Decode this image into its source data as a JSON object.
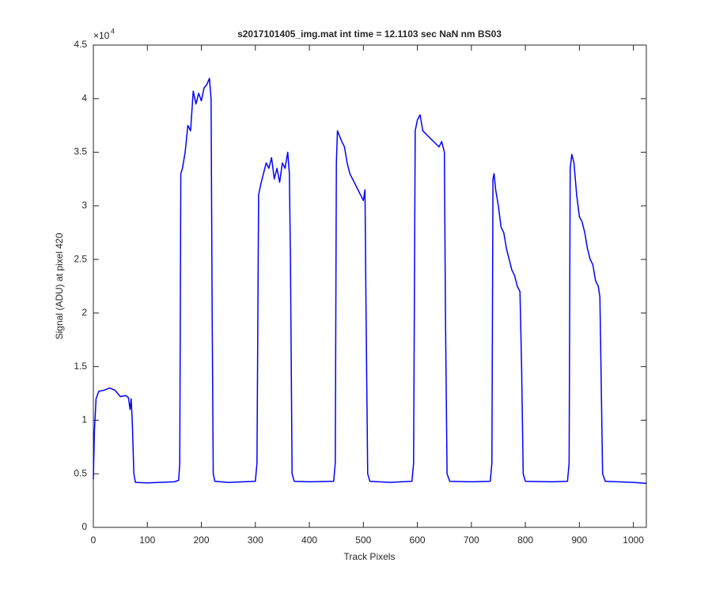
{
  "chart_data": {
    "type": "line",
    "title": "s2017101405_img.mat int time = 12.1103 sec  NaN nm BS03",
    "x_label": "Track Pixels",
    "y_label": "Signal (ADU) at pixel 420",
    "y_multiplier": {
      "base": "×10",
      "exponent": "4"
    },
    "xlim": [
      0,
      1024
    ],
    "ylim": [
      0,
      45000
    ],
    "xticks": [
      0,
      100,
      200,
      300,
      400,
      500,
      600,
      700,
      800,
      900,
      1000
    ],
    "yticks": [
      0,
      {
        "value": 5000,
        "label": "0.5"
      },
      {
        "value": 10000,
        "label": "1"
      },
      {
        "value": 15000,
        "label": "1.5"
      },
      {
        "value": 20000,
        "label": "2"
      },
      {
        "value": 25000,
        "label": "2.5"
      },
      {
        "value": 30000,
        "label": "3"
      },
      {
        "value": 35000,
        "label": "3.5"
      },
      {
        "value": 40000,
        "label": "4"
      },
      {
        "value": 45000,
        "label": "4.5"
      }
    ],
    "grid": false,
    "x": [
      0,
      2,
      5,
      10,
      20,
      30,
      40,
      50,
      60,
      65,
      68,
      70,
      72,
      75,
      78,
      100,
      150,
      158,
      160,
      162,
      165,
      170,
      175,
      180,
      185,
      190,
      195,
      200,
      205,
      210,
      215,
      218,
      220,
      222,
      225,
      250,
      300,
      303,
      306,
      310,
      315,
      320,
      325,
      330,
      335,
      340,
      345,
      350,
      355,
      360,
      363,
      365,
      368,
      372,
      400,
      445,
      448,
      450,
      452,
      460,
      465,
      470,
      475,
      480,
      485,
      490,
      495,
      500,
      503,
      505,
      508,
      512,
      550,
      590,
      593,
      596,
      600,
      605,
      610,
      620,
      630,
      640,
      645,
      650,
      652,
      655,
      660,
      700,
      735,
      738,
      740,
      742,
      745,
      750,
      755,
      760,
      765,
      770,
      775,
      780,
      785,
      790,
      793,
      796,
      800,
      850,
      878,
      881,
      883,
      886,
      890,
      895,
      900,
      905,
      910,
      915,
      920,
      925,
      930,
      935,
      938,
      940,
      943,
      948,
      1000,
      1024
    ],
    "series": [
      {
        "color": "#0000ff",
        "values": [
          4500,
          9000,
          12000,
          12700,
          12800,
          13000,
          12800,
          12200,
          12300,
          12100,
          11000,
          12000,
          10000,
          5000,
          4200,
          4150,
          4250,
          4400,
          6000,
          33000,
          33500,
          35000,
          37500,
          37000,
          40700,
          39500,
          40500,
          39800,
          41000,
          41300,
          41900,
          40000,
          20000,
          5000,
          4300,
          4200,
          4300,
          6000,
          31000,
          32000,
          33000,
          34000,
          33500,
          34500,
          32500,
          33500,
          32200,
          34000,
          33500,
          35000,
          33000,
          25000,
          5000,
          4300,
          4250,
          4300,
          6000,
          34000,
          37000,
          36000,
          35500,
          34000,
          33000,
          32500,
          32000,
          31500,
          31000,
          30500,
          31500,
          20000,
          5000,
          4300,
          4200,
          4300,
          6000,
          37000,
          38000,
          38500,
          37000,
          36500,
          36000,
          35500,
          36000,
          35000,
          20000,
          5000,
          4300,
          4250,
          4300,
          6000,
          32500,
          33000,
          31500,
          30000,
          28000,
          27500,
          26000,
          25000,
          24000,
          23500,
          22500,
          22000,
          15000,
          5000,
          4300,
          4250,
          4300,
          6000,
          33500,
          34800,
          34000,
          31000,
          29000,
          28500,
          27500,
          26000,
          25000,
          24500,
          23000,
          22500,
          21500,
          15000,
          5000,
          4300,
          4200,
          4100
        ]
      }
    ]
  }
}
